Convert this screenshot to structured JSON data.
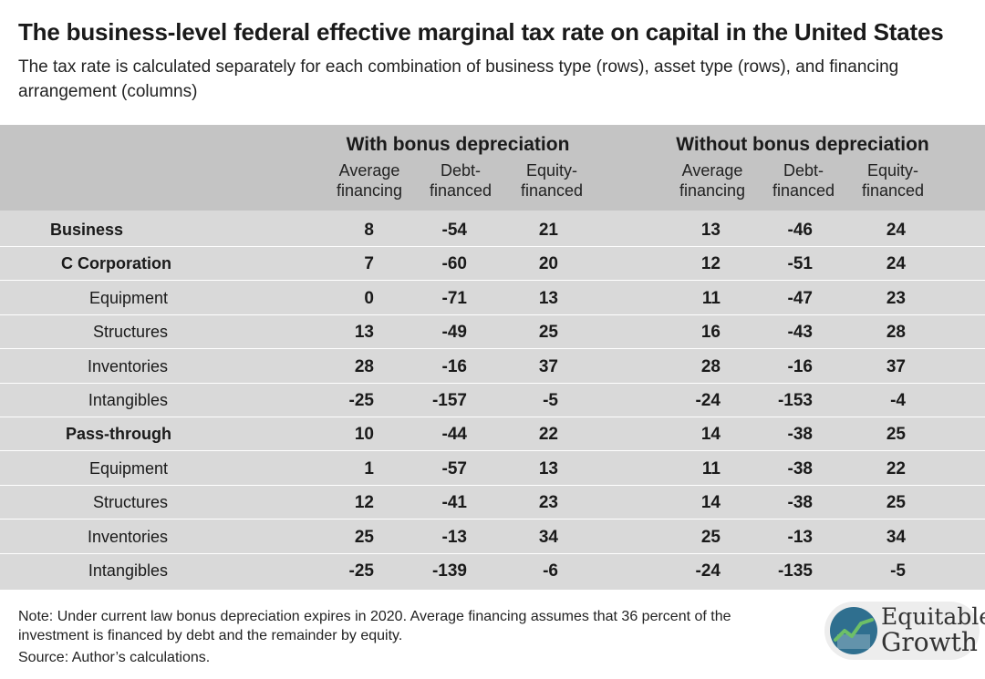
{
  "title": "The business-level federal effective marginal tax rate on capital in the United States",
  "subtitle": "The tax rate is calculated separately for each combination of business type (rows), asset type (rows), and financing arrangement (columns)",
  "chart_data": {
    "type": "table",
    "column_groups": [
      {
        "label": "With bonus depreciation",
        "columns": [
          "Average financing",
          "Debt-financed",
          "Equity-financed"
        ]
      },
      {
        "label": "Without bonus depreciation",
        "columns": [
          "Average financing",
          "Debt-financed",
          "Equity-financed"
        ]
      }
    ],
    "rows": [
      {
        "label": "Business",
        "level": 0,
        "values": [
          "8",
          "-54",
          "21",
          "13",
          "-46",
          "24"
        ]
      },
      {
        "label": "C Corporation",
        "level": 1,
        "values": [
          "7",
          "-60",
          "20",
          "12",
          "-51",
          "24"
        ]
      },
      {
        "label": "Equipment",
        "level": 2,
        "values": [
          "0",
          "-71",
          "13",
          "11",
          "-47",
          "23"
        ]
      },
      {
        "label": "Structures",
        "level": 2,
        "values": [
          "13",
          "-49",
          "25",
          "16",
          "-43",
          "28"
        ]
      },
      {
        "label": "Inventories",
        "level": 2,
        "values": [
          "28",
          "-16",
          "37",
          "28",
          "-16",
          "37"
        ]
      },
      {
        "label": "Intangibles",
        "level": 2,
        "values": [
          "-25",
          "-157",
          "-5",
          "-24",
          "-153",
          "-4"
        ]
      },
      {
        "label": "Pass-through",
        "level": 1,
        "values": [
          "10",
          "-44",
          "22",
          "14",
          "-38",
          "25"
        ]
      },
      {
        "label": "Equipment",
        "level": 2,
        "values": [
          "1",
          "-57",
          "13",
          "11",
          "-38",
          "22"
        ]
      },
      {
        "label": "Structures",
        "level": 2,
        "values": [
          "12",
          "-41",
          "23",
          "14",
          "-38",
          "25"
        ]
      },
      {
        "label": "Inventories",
        "level": 2,
        "values": [
          "25",
          "-13",
          "34",
          "25",
          "-13",
          "34"
        ]
      },
      {
        "label": "Intangibles",
        "level": 2,
        "values": [
          "-25",
          "-139",
          "-6",
          "-24",
          "-135",
          "-5"
        ]
      }
    ]
  },
  "note": "Note: Under current law bonus depreciation expires in 2020. Average financing assumes that 36 percent of the investment is financed by debt and the remainder by equity.",
  "source": "Source: Author’s calculations.",
  "logo": {
    "line1": "Equitable",
    "line2": "Growth",
    "bg_color": "#2f6f8f",
    "accent_color": "#6dbf67"
  }
}
